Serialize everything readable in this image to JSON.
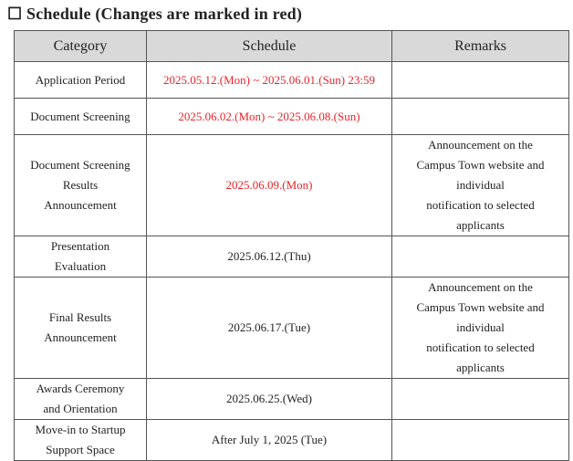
{
  "title": "☐ Schedule (Changes are marked in red)",
  "table": {
    "headers": [
      "Category",
      "Schedule",
      "Remarks"
    ],
    "rows": [
      {
        "category": [
          "Application Period"
        ],
        "schedule": "2025.05.12.(Mon) ~ 2025.06.01.(Sun) 23:59",
        "color": "#e8232a",
        "remarks": []
      },
      {
        "category": [
          "Document Screening"
        ],
        "schedule": "2025.06.02.(Mon) ~ 2025.06.08.(Sun)",
        "color": "#e8232a",
        "remarks": []
      },
      {
        "category": [
          "Document Screening",
          "Results",
          "Announcement"
        ],
        "schedule": "2025.06.09.(Mon)",
        "color": "#e8232a",
        "remarks": [
          "Announcement on the",
          "Campus Town website and",
          "individual",
          "notification to selected",
          "applicants"
        ]
      },
      {
        "category": [
          "Presentation",
          "Evaluation"
        ],
        "schedule": "2025.06.12.(Thu)",
        "color": "#222222",
        "remarks": []
      },
      {
        "category": [
          "Final Results",
          "Announcement"
        ],
        "schedule": "2025.06.17.(Tue)",
        "color": "#222222",
        "remarks": [
          "Announcement on the",
          "Campus Town website and",
          "individual",
          "notification to selected",
          "applicants"
        ]
      },
      {
        "category": [
          "Awards Ceremony",
          "and Orientation"
        ],
        "schedule": "2025.06.25.(Wed)",
        "color": "#222222",
        "remarks": []
      },
      {
        "category": [
          "Move-in to Startup",
          "Support Space"
        ],
        "schedule": "After July 1, 2025 (Tue)",
        "color": "#222222",
        "remarks": []
      }
    ]
  }
}
